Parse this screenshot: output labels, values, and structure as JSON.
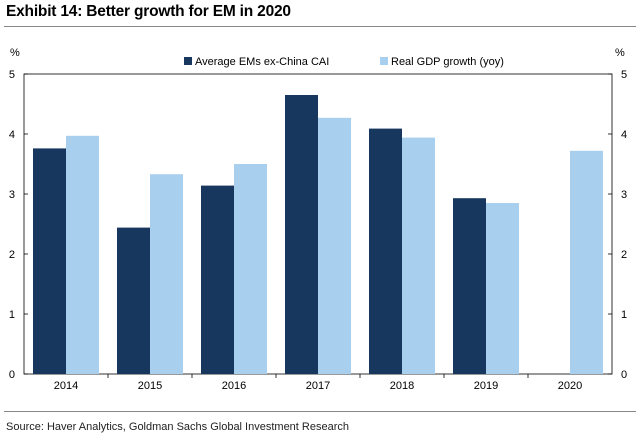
{
  "title": "Exhibit 14: Better growth for EM in 2020",
  "source": "Source: Haver Analytics, Goldman Sachs Global Investment Research",
  "chart_data": {
    "type": "bar",
    "categories": [
      "2014",
      "2015",
      "2016",
      "2017",
      "2018",
      "2019",
      "2020"
    ],
    "series": [
      {
        "name": "Average EMs ex-China CAI",
        "values": [
          3.76,
          2.44,
          3.14,
          4.65,
          4.09,
          2.93,
          null
        ],
        "color": "#17375e"
      },
      {
        "name": "Real GDP growth (yoy)",
        "values": [
          3.97,
          3.33,
          3.5,
          4.27,
          3.94,
          2.85,
          3.72
        ],
        "color": "#a9cfee"
      }
    ],
    "ylim": [
      0,
      5
    ],
    "yticks": [
      "0",
      "1",
      "2",
      "3",
      "4",
      "5"
    ],
    "y_unit_left": "%",
    "y_unit_right": "%",
    "legend_position": "top",
    "grid": false
  }
}
